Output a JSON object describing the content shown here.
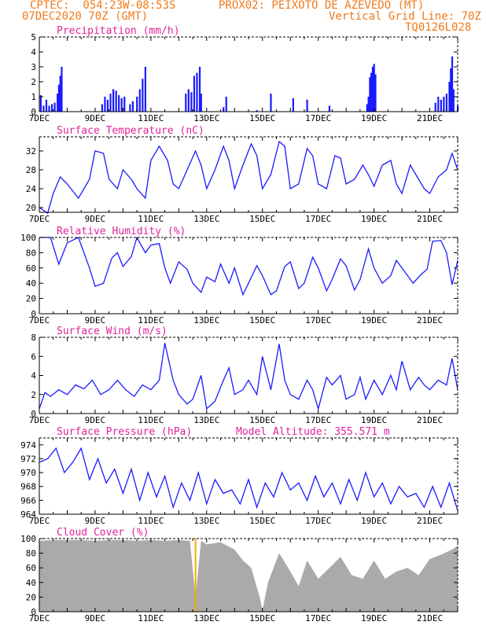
{
  "header": {
    "line1_left": "CPTEC:  054:23W-08:53S",
    "line1_right": "PROX02: PEIXOTO DE AZEVEDO (MT)",
    "line2_left": "07DEC2020 70Z (GMT)",
    "line2_right": "Vertical Grid Line: 70Z",
    "line3_right": "TQ0126L028"
  },
  "chart_data": [
    {
      "type": "bar",
      "title": "Precipitation (mm/h)",
      "ylim": [
        0,
        5
      ],
      "yticks": [
        "0",
        "1",
        "2",
        "3",
        "4",
        "5"
      ],
      "xticks": [
        "7DEC",
        "9DEC",
        "11DEC",
        "13DEC",
        "15DEC",
        "17DEC",
        "19DEC",
        "21DEC"
      ],
      "color": "#1a1aff",
      "x": [
        7.05,
        7.15,
        7.25,
        7.35,
        7.45,
        7.55,
        7.65,
        7.7,
        7.75,
        7.8,
        9.25,
        9.35,
        9.45,
        9.55,
        9.65,
        9.75,
        9.85,
        9.95,
        10.05,
        10.25,
        10.35,
        10.5,
        10.6,
        10.7,
        10.8,
        12.25,
        12.35,
        12.45,
        12.55,
        12.65,
        12.75,
        12.8,
        13.6,
        13.7,
        14.8,
        15.3,
        16.1,
        16.6,
        17.4,
        18.75,
        18.8,
        18.85,
        18.9,
        18.95,
        19.0,
        19.05,
        21.2,
        21.3,
        21.4,
        21.5,
        21.6,
        21.7,
        21.75,
        21.8,
        21.85,
        22.0
      ],
      "values": [
        1.1,
        0.4,
        0.8,
        0.4,
        0.5,
        0.6,
        1.2,
        1.8,
        2.4,
        3.0,
        0.5,
        1.0,
        0.8,
        1.2,
        1.5,
        1.4,
        1.1,
        0.9,
        1.0,
        0.5,
        0.7,
        1.0,
        1.5,
        2.2,
        3.0,
        1.2,
        1.5,
        1.3,
        2.4,
        2.6,
        3.0,
        1.2,
        0.3,
        1.0,
        0.1,
        1.2,
        0.9,
        0.8,
        0.4,
        0.5,
        1.0,
        2.3,
        2.6,
        3.0,
        3.2,
        2.5,
        0.6,
        1.0,
        0.8,
        1.0,
        1.2,
        2.0,
        2.9,
        3.7,
        1.5,
        0.4
      ]
    },
    {
      "type": "line",
      "title": "Surface Temperature (nC)",
      "ylim": [
        19,
        35
      ],
      "yticks": [
        "20",
        "24",
        "28",
        "32"
      ],
      "xticks": [
        "7DEC",
        "9DEC",
        "11DEC",
        "13DEC",
        "15DEC",
        "17DEC",
        "19DEC",
        "21DEC"
      ],
      "color": "#1a1aff",
      "x": [
        7.0,
        7.3,
        7.5,
        7.75,
        8.0,
        8.4,
        8.8,
        9.0,
        9.3,
        9.5,
        9.8,
        10.0,
        10.3,
        10.5,
        10.8,
        11.0,
        11.3,
        11.6,
        11.8,
        12.0,
        12.3,
        12.6,
        12.8,
        13.0,
        13.3,
        13.6,
        13.8,
        14.0,
        14.3,
        14.6,
        14.8,
        15.0,
        15.3,
        15.6,
        15.8,
        16.0,
        16.3,
        16.6,
        16.8,
        17.0,
        17.3,
        17.6,
        17.8,
        18.0,
        18.3,
        18.6,
        18.8,
        19.0,
        19.3,
        19.6,
        19.8,
        20.0,
        20.3,
        20.6,
        20.8,
        21.0,
        21.3,
        21.6,
        21.8,
        22.0
      ],
      "values": [
        20.0,
        18.8,
        23.0,
        26.5,
        25.0,
        22.0,
        26.0,
        32.0,
        31.5,
        26.0,
        24.0,
        28.0,
        26.0,
        24.0,
        22.0,
        30.0,
        33.0,
        30.0,
        25.0,
        24.0,
        28.0,
        32.0,
        29.0,
        24.0,
        28.0,
        33.0,
        30.0,
        24.0,
        29.0,
        33.5,
        31.0,
        24.0,
        27.0,
        34.0,
        33.0,
        24.0,
        25.0,
        32.5,
        31.0,
        25.0,
        24.0,
        31.0,
        30.5,
        25.0,
        26.0,
        29.0,
        27.0,
        24.5,
        29.0,
        30.0,
        25.0,
        23.0,
        29.0,
        26.0,
        24.0,
        23.0,
        26.5,
        28.0,
        31.5,
        28.0
      ]
    },
    {
      "type": "line",
      "title": "Relative Humidity (%)",
      "ylim": [
        0,
        100
      ],
      "yticks": [
        "0",
        "20",
        "40",
        "60",
        "80",
        "100"
      ],
      "xticks": [
        "7DEC",
        "9DEC",
        "11DEC",
        "13DEC",
        "15DEC",
        "17DEC",
        "19DEC",
        "21DEC"
      ],
      "color": "#1a1aff",
      "x": [
        7.0,
        7.4,
        7.7,
        8.0,
        8.4,
        8.6,
        8.8,
        9.0,
        9.3,
        9.6,
        9.8,
        10.0,
        10.3,
        10.5,
        10.8,
        11.0,
        11.3,
        11.5,
        11.7,
        12.0,
        12.3,
        12.5,
        12.8,
        13.0,
        13.3,
        13.5,
        13.8,
        14.0,
        14.3,
        14.5,
        14.8,
        15.0,
        15.3,
        15.5,
        15.8,
        16.0,
        16.3,
        16.5,
        16.8,
        17.0,
        17.3,
        17.5,
        17.8,
        18.0,
        18.3,
        18.5,
        18.8,
        19.0,
        19.3,
        19.6,
        19.8,
        20.0,
        20.4,
        20.7,
        20.9,
        21.1,
        21.4,
        21.6,
        21.8,
        22.0
      ],
      "values": [
        100,
        100,
        65,
        93,
        100,
        80,
        60,
        36,
        40,
        73,
        80,
        62,
        75,
        100,
        80,
        90,
        92,
        60,
        40,
        68,
        58,
        40,
        28,
        48,
        42,
        65,
        40,
        60,
        25,
        40,
        63,
        50,
        25,
        30,
        62,
        68,
        33,
        40,
        74,
        60,
        30,
        45,
        72,
        63,
        31,
        45,
        85,
        60,
        40,
        50,
        70,
        60,
        40,
        52,
        58,
        95,
        96,
        80,
        38,
        70
      ]
    },
    {
      "type": "line",
      "title": "Surface Wind (m/s)",
      "ylim": [
        0,
        8
      ],
      "yticks": [
        "0",
        "2",
        "4",
        "6",
        "8"
      ],
      "xticks": [
        "7DEC",
        "9DEC",
        "11DEC",
        "13DEC",
        "15DEC",
        "17DEC",
        "19DEC",
        "21DEC"
      ],
      "color": "#1a1aff",
      "x": [
        7.0,
        7.2,
        7.4,
        7.7,
        8.0,
        8.3,
        8.6,
        8.9,
        9.2,
        9.5,
        9.8,
        10.1,
        10.4,
        10.7,
        11.0,
        11.3,
        11.5,
        11.8,
        12.0,
        12.3,
        12.5,
        12.8,
        13.0,
        13.3,
        13.6,
        13.8,
        14.0,
        14.3,
        14.5,
        14.8,
        15.0,
        15.3,
        15.6,
        15.8,
        16.0,
        16.3,
        16.6,
        16.8,
        17.0,
        17.3,
        17.5,
        17.8,
        18.0,
        18.3,
        18.5,
        18.7,
        19.0,
        19.3,
        19.6,
        19.8,
        20.0,
        20.3,
        20.6,
        20.8,
        21.0,
        21.3,
        21.6,
        21.8,
        22.0
      ],
      "values": [
        0.5,
        2.2,
        1.8,
        2.5,
        2.0,
        3.0,
        2.6,
        3.5,
        2.0,
        2.5,
        3.5,
        2.5,
        1.8,
        3.0,
        2.5,
        3.5,
        7.4,
        3.5,
        2.0,
        1.0,
        1.5,
        4.0,
        0.5,
        1.3,
        3.5,
        4.8,
        2.0,
        2.5,
        3.5,
        2.0,
        6.0,
        2.5,
        7.3,
        3.5,
        2.0,
        1.5,
        3.5,
        2.5,
        0.5,
        3.8,
        3.0,
        4.0,
        1.5,
        2.0,
        3.8,
        1.5,
        3.5,
        2.0,
        4.0,
        2.5,
        5.5,
        2.5,
        3.8,
        3.0,
        2.5,
        3.5,
        3.0,
        5.8,
        2.5
      ]
    },
    {
      "type": "line",
      "title": "Surface Pressure (hPa)",
      "annotation": "Model Altitude: 355.571  m",
      "ylim": [
        964,
        975
      ],
      "yticks": [
        "964",
        "966",
        "968",
        "970",
        "972",
        "974"
      ],
      "xticks": [
        "7DEC",
        "9DEC",
        "11DEC",
        "13DEC",
        "15DEC",
        "17DEC",
        "19DEC",
        "21DEC"
      ],
      "color": "#1a1aff",
      "x": [
        7.0,
        7.3,
        7.6,
        7.9,
        8.2,
        8.5,
        8.8,
        9.1,
        9.4,
        9.7,
        10.0,
        10.3,
        10.6,
        10.9,
        11.2,
        11.5,
        11.8,
        12.1,
        12.4,
        12.7,
        13.0,
        13.3,
        13.6,
        13.9,
        14.2,
        14.5,
        14.8,
        15.1,
        15.4,
        15.7,
        16.0,
        16.3,
        16.6,
        16.9,
        17.2,
        17.5,
        17.8,
        18.1,
        18.4,
        18.7,
        19.0,
        19.3,
        19.6,
        19.9,
        20.2,
        20.5,
        20.8,
        21.1,
        21.4,
        21.7,
        22.0
      ],
      "values": [
        971.5,
        972.0,
        973.5,
        970.0,
        971.5,
        973.5,
        969.0,
        972.0,
        968.5,
        970.5,
        967.0,
        970.5,
        966.0,
        970.0,
        966.5,
        969.5,
        965.0,
        968.5,
        966.0,
        970.0,
        965.5,
        969.0,
        967.0,
        967.5,
        965.5,
        969.0,
        965.0,
        968.5,
        966.5,
        970.0,
        967.5,
        968.5,
        966.0,
        969.5,
        966.5,
        968.5,
        965.5,
        969.0,
        966.0,
        970.0,
        966.5,
        968.5,
        965.5,
        968.0,
        966.5,
        967.0,
        965.0,
        968.0,
        965.0,
        968.5,
        964.5
      ]
    },
    {
      "type": "area",
      "title": "Cloud Cover (%)",
      "ylim": [
        0,
        100
      ],
      "yticks": [
        "0",
        "20",
        "40",
        "60",
        "80",
        "100"
      ],
      "xticks": [
        "7DEC",
        "9DEC",
        "11DEC",
        "13DEC",
        "15DEC",
        "17DEC",
        "19DEC",
        "21DEC"
      ],
      "color": "#aaaaaa",
      "marker_color": "#ffa500",
      "marker_x": 12.6,
      "x": [
        7.0,
        7.5,
        8.0,
        8.5,
        9.0,
        9.5,
        10.0,
        10.5,
        11.0,
        11.5,
        12.0,
        12.4,
        12.6,
        12.8,
        13.0,
        13.5,
        14.0,
        14.3,
        14.6,
        14.9,
        15.0,
        15.2,
        15.6,
        16.0,
        16.3,
        16.6,
        17.0,
        17.4,
        17.8,
        18.2,
        18.6,
        19.0,
        19.4,
        19.8,
        20.2,
        20.6,
        21.0,
        21.4,
        21.8,
        22.0
      ],
      "values": [
        97,
        98,
        98,
        98,
        97,
        98,
        98,
        97,
        98,
        97,
        98,
        97,
        20,
        97,
        92,
        95,
        85,
        70,
        60,
        20,
        2,
        40,
        80,
        55,
        35,
        70,
        45,
        60,
        75,
        50,
        45,
        70,
        45,
        55,
        60,
        50,
        72,
        78,
        85,
        90
      ]
    }
  ]
}
